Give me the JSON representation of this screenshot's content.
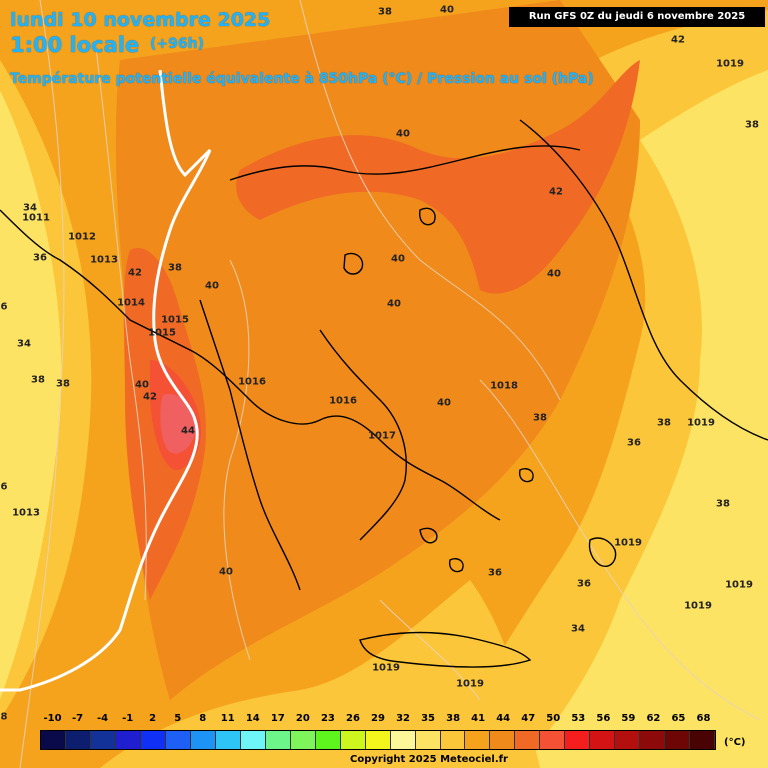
{
  "header": {
    "date": "lundi 10 novembre 2025",
    "local_time": "1:00 locale",
    "lead": "(+96h)",
    "subtitle": "Température potentielle équivalente à 850hPa (°C) / Pression au sol (hPa)",
    "run": "Run GFS 0Z du jeudi 6 novembre 2025"
  },
  "colors": {
    "deep": "#f08a1b",
    "mid": "#f5a21c",
    "light": "#fbc63a",
    "pale": "#fde364",
    "hot": "#f06a26",
    "hotter": "#f45135",
    "peak": "#f06060",
    "coast": "#000000",
    "isobar": "#e8d3b8",
    "freezing": "#ffffff"
  },
  "temperature_labels": [
    "38",
    "40",
    "42",
    "38",
    "34",
    "36",
    "6",
    "34",
    "38",
    "42",
    "38",
    "40",
    "40",
    "40",
    "42",
    "40",
    "40",
    "38",
    "40",
    "42",
    "44",
    "40",
    "38",
    "38",
    "36",
    "38",
    "36",
    "34",
    "40",
    "36",
    "6",
    "8"
  ],
  "pressure_labels": [
    "1011",
    "1012",
    "1013",
    "1014",
    "1015",
    "1015",
    "1016",
    "1016",
    "1017",
    "1019",
    "1019",
    "1019",
    "1019",
    "1019",
    "1019",
    "1019",
    "1013",
    "1018"
  ],
  "scale": {
    "ticks": [
      "-10",
      "-7",
      "-4",
      "-1",
      "2",
      "5",
      "8",
      "11",
      "14",
      "17",
      "20",
      "23",
      "26",
      "29",
      "32",
      "35",
      "38",
      "41",
      "44",
      "47",
      "50",
      "53",
      "56",
      "59",
      "62",
      "65",
      "68"
    ],
    "colors": [
      "#0a0a4a",
      "#0d1e6e",
      "#12329a",
      "#1f1fd0",
      "#1030f5",
      "#1e60f5",
      "#1c93f5",
      "#2ec4f5",
      "#6ef5f5",
      "#6ef58a",
      "#7ef55a",
      "#5ef51e",
      "#cdf51e",
      "#f5f51e",
      "#fdf79a",
      "#fde364",
      "#fbc63a",
      "#f5a21c",
      "#f08a1b",
      "#f06a26",
      "#f45135",
      "#f51e1e",
      "#d41414",
      "#b40f0f",
      "#8c0a0a",
      "#6e0606",
      "#4a0303"
    ],
    "unit": "(°C)"
  },
  "copyright": "Copyright 2025 Meteociel.fr"
}
